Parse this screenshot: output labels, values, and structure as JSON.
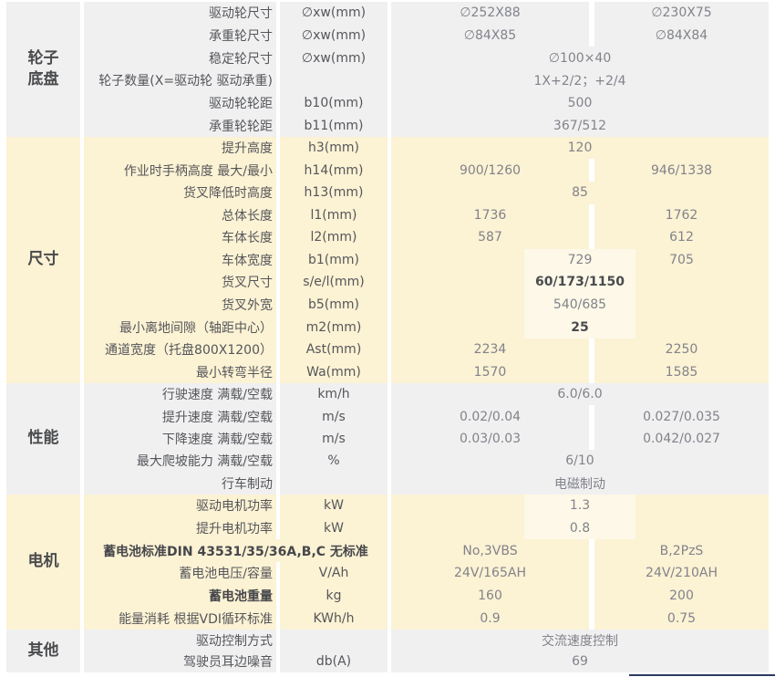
{
  "colors": {
    "section_gray": "#f0f0f1",
    "section_cream": "#fcf2d4",
    "highlight_box": "#fdf8e8",
    "bottom_line": "#2b3a5f",
    "label_text": "#55565a",
    "value_text": "#82838a",
    "category_text": "#4a4b4d"
  },
  "sections": [
    {
      "category": "轮子\n底盘",
      "theme": "gray",
      "rows": [
        {
          "label": "驱动轮尺寸",
          "unit": "∅xw(mm)",
          "vtype": "pair",
          "a": "∅252X88",
          "b": "∅230X75"
        },
        {
          "label": "承重轮尺寸",
          "unit": "∅xw(mm)",
          "vtype": "pair",
          "a": "∅84X85",
          "b": "∅84X84"
        },
        {
          "label": "稳定轮尺寸",
          "unit": "∅xw(mm)",
          "vtype": "merged",
          "m": "∅100×40"
        },
        {
          "label": "轮子数量(X=驱动轮 驱动承重)",
          "unit": "",
          "vtype": "merged",
          "m": "1X+2/2；+2/4"
        },
        {
          "label": "驱动轮轮距",
          "unit": "b10(mm)",
          "vtype": "merged",
          "m": "500"
        },
        {
          "label": "承重轮轮距",
          "unit": "b11(mm)",
          "vtype": "merged",
          "m": "367/512"
        }
      ]
    },
    {
      "category": "尺寸",
      "theme": "cream",
      "rows": [
        {
          "label": "提升高度",
          "unit": "h3(mm)",
          "vtype": "merged",
          "m": "120"
        },
        {
          "label": "作业时手柄高度 最大/最小",
          "unit": "h14(mm)",
          "vtype": "pair",
          "a": "900/1260",
          "b": "946/1338"
        },
        {
          "label": "货叉降低时高度",
          "unit": "h13(mm)",
          "vtype": "merged",
          "m": "85"
        },
        {
          "label": "总体长度",
          "unit": "l1(mm)",
          "vtype": "pair",
          "a": "1736",
          "b": "1762"
        },
        {
          "label": "车体长度",
          "unit": "l2(mm)",
          "vtype": "pair",
          "a": "587",
          "b": "612"
        },
        {
          "label": "车体宽度",
          "unit": "b1(mm)",
          "vtype": "boxed_pair",
          "a": "729",
          "b": "705"
        },
        {
          "label": "货叉尺寸",
          "unit": "s/e/l(mm)",
          "vtype": "merged_boxed",
          "m": "60/173/1150",
          "bold": true
        },
        {
          "label": "货叉外宽",
          "unit": "b5(mm)",
          "vtype": "merged_boxed",
          "m": "540/685"
        },
        {
          "label": "最小离地间隙（轴距中心）",
          "unit": "m2(mm)",
          "vtype": "merged_boxed",
          "m": "25",
          "bold": true
        },
        {
          "label": "通道宽度（托盘800X1200）",
          "unit": "Ast(mm)",
          "vtype": "pair",
          "a": "2234",
          "b": "2250"
        },
        {
          "label": "最小转弯半径",
          "unit": "Wa(mm)",
          "vtype": "pair",
          "a": "1570",
          "b": "1585"
        }
      ]
    },
    {
      "category": "性能",
      "theme": "gray",
      "rows": [
        {
          "label": "行驶速度 满载/空载",
          "unit": "km/h",
          "vtype": "merged",
          "m": "6.0/6.0"
        },
        {
          "label": "提升速度 满载/空载",
          "unit": "m/s",
          "vtype": "pair",
          "a": "0.02/0.04",
          "b": "0.027/0.035"
        },
        {
          "label": "下降速度 满载/空载",
          "unit": "m/s",
          "vtype": "pair",
          "a": "0.03/0.03",
          "b": "0.042/0.027"
        },
        {
          "label": "最大爬坡能力 满载/空载",
          "unit": "%",
          "vtype": "merged",
          "m": "6/10"
        },
        {
          "label": "行车制动",
          "unit": "",
          "vtype": "merged",
          "m": "电磁制动"
        }
      ]
    },
    {
      "category": "电机",
      "theme": "cream",
      "rows": [
        {
          "label": "驱动电机功率",
          "unit": "kW",
          "vtype": "merged_boxed",
          "m": "1.3"
        },
        {
          "label": "提升电机功率",
          "unit": "kW",
          "vtype": "merged_boxed",
          "m": "0.8"
        },
        {
          "label": "蓄电池标准DIN 43531/35/36A,B,C 无标准",
          "unit": "",
          "vtype": "pair",
          "a": "No,3VBS",
          "b": "B,2PzS",
          "label_span": true,
          "label_bold": true
        },
        {
          "label": "蓄电池电压/容量",
          "unit": "V/Ah",
          "vtype": "pair",
          "a": "24V/165AH",
          "b": "24V/210AH"
        },
        {
          "label": "蓄电池重量",
          "unit": "kg",
          "vtype": "pair",
          "a": "160",
          "b": "200",
          "label_bold": true
        },
        {
          "label": "能量消耗 根据VDI循环标准",
          "unit": "KWh/h",
          "vtype": "pair",
          "a": "0.9",
          "b": "0.75"
        }
      ]
    },
    {
      "category": "其他",
      "theme": "gray",
      "rows": [
        {
          "label": "驱动控制方式",
          "unit": "",
          "vtype": "merged",
          "m": "交流速度控制"
        },
        {
          "label": "驾驶员耳边噪音",
          "unit": "db(A)",
          "vtype": "merged",
          "m": "69"
        }
      ]
    }
  ]
}
